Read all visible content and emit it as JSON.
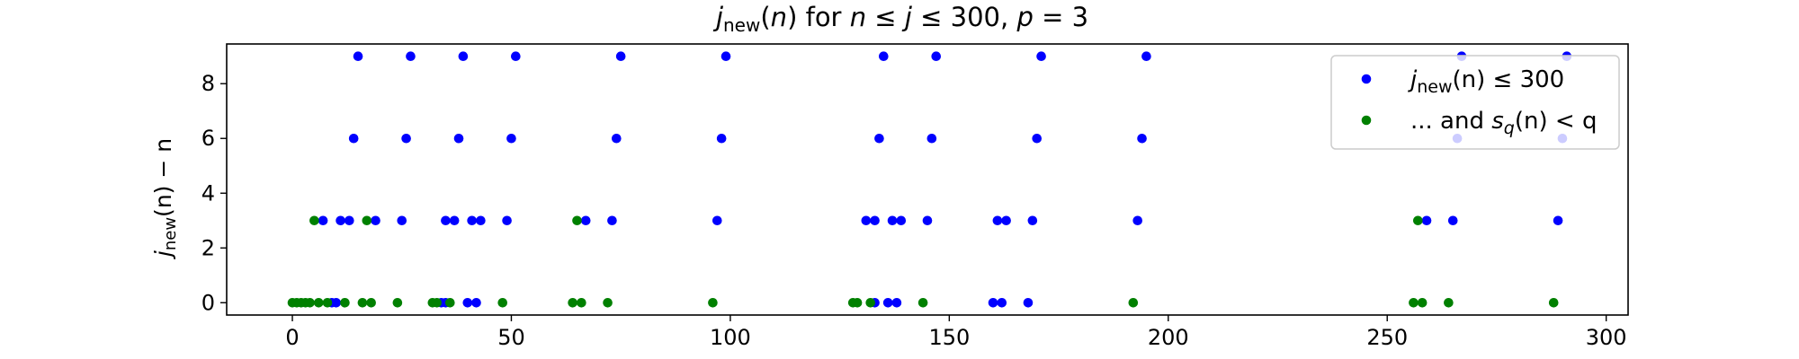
{
  "chart_data": {
    "type": "scatter",
    "title": {
      "j": "j",
      "sub": "new",
      "paren": "(",
      "n": "n",
      "paren_close": ")",
      "for_text": " for ",
      "n2": "n",
      "le1": " ≤ ",
      "j2": "j",
      "le2": " ≤ 300, ",
      "p": "p",
      "eq": " = 3"
    },
    "xlabel": "",
    "ylabel": {
      "j": "j",
      "sub": "new",
      "rest": "(n) − n"
    },
    "xlim": [
      -15,
      305
    ],
    "ylim": [
      -0.45,
      9.45
    ],
    "xticks": [
      0,
      50,
      100,
      150,
      200,
      250,
      300
    ],
    "yticks": [
      0,
      2,
      4,
      6,
      8
    ],
    "xtick_labels": [
      "0",
      "50",
      "100",
      "150",
      "200",
      "250",
      "300"
    ],
    "ytick_labels": [
      "0",
      "2",
      "4",
      "6",
      "8"
    ],
    "legend_position": "upper-right",
    "series": [
      {
        "name": {
          "j": "j",
          "sub": "new",
          "rest": "(n) ≤ 300"
        },
        "color": "#0000ff",
        "x": [
          9,
          10,
          34,
          35,
          40,
          42,
          133,
          136,
          138,
          160,
          162,
          168,
          7,
          11,
          13,
          19,
          25,
          35,
          37,
          41,
          43,
          49,
          67,
          73,
          97,
          131,
          133,
          137,
          139,
          145,
          161,
          163,
          169,
          193,
          259,
          265,
          289,
          14,
          26,
          38,
          50,
          74,
          98,
          134,
          146,
          170,
          194,
          266,
          290,
          15,
          27,
          39,
          51,
          75,
          99,
          135,
          147,
          171,
          195,
          267,
          291
        ],
        "y": [
          0,
          0,
          0,
          0,
          0,
          0,
          0,
          0,
          0,
          0,
          0,
          0,
          3,
          3,
          3,
          3,
          3,
          3,
          3,
          3,
          3,
          3,
          3,
          3,
          3,
          3,
          3,
          3,
          3,
          3,
          3,
          3,
          3,
          3,
          3,
          3,
          3,
          6,
          6,
          6,
          6,
          6,
          6,
          6,
          6,
          6,
          6,
          6,
          6,
          9,
          9,
          9,
          9,
          9,
          9,
          9,
          9,
          9,
          9,
          9,
          9
        ]
      },
      {
        "name": {
          "pre": "... and ",
          "s": "s",
          "sub": "q",
          "rest": "(n) < q"
        },
        "color": "#008000",
        "x": [
          0,
          1,
          2,
          3,
          4,
          6,
          8,
          12,
          16,
          18,
          24,
          32,
          33,
          36,
          48,
          64,
          66,
          72,
          96,
          128,
          129,
          132,
          144,
          192,
          256,
          258,
          264,
          288,
          5,
          17,
          65,
          257
        ],
        "y": [
          0,
          0,
          0,
          0,
          0,
          0,
          0,
          0,
          0,
          0,
          0,
          0,
          0,
          0,
          0,
          0,
          0,
          0,
          0,
          0,
          0,
          0,
          0,
          0,
          0,
          0,
          0,
          0,
          3,
          3,
          3,
          3
        ]
      }
    ]
  }
}
